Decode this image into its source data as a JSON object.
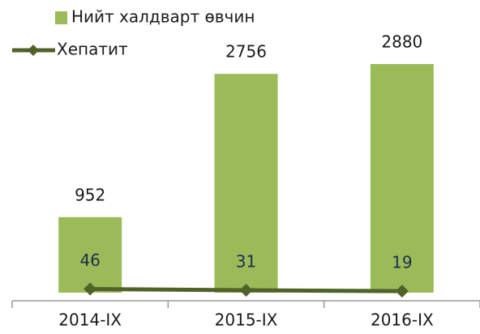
{
  "chart_data": {
    "type": "bar",
    "categories": [
      "2014-IX",
      "2015-IX",
      "2016-IX"
    ],
    "series": [
      {
        "name": "Нийт халдварт өвчин",
        "type": "bar",
        "color": "#9bbb59",
        "values": [
          952,
          2756,
          2880
        ]
      },
      {
        "name": "Хепатит",
        "type": "line",
        "color": "#4f6228",
        "values": [
          46,
          31,
          19
        ]
      }
    ]
  }
}
